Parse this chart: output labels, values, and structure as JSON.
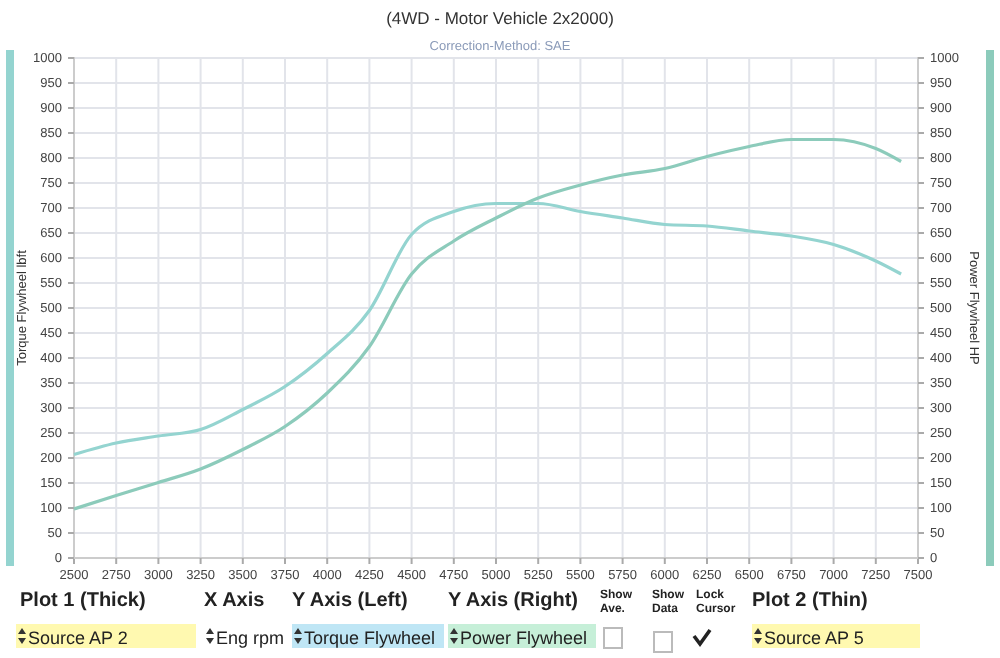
{
  "chart_data": {
    "type": "line",
    "title": "(4WD - Motor Vehicle 2x2000)",
    "subtitle": "Correction-Method: SAE",
    "ylabel": "Torque Flywheel lbft",
    "y2label": "Power Flywheel HP",
    "x": [
      2500,
      2750,
      3000,
      3250,
      3500,
      3750,
      4000,
      4250,
      4500,
      4750,
      5000,
      5250,
      5500,
      5750,
      6000,
      6250,
      6500,
      6750,
      7000,
      7250,
      7400
    ],
    "series": [
      {
        "color": "#94d4d0",
        "values": [
          207,
          230,
          244,
          257,
          297,
          343,
          409,
          495,
          647,
          693,
          709,
          709,
          693,
          680,
          667,
          664,
          654,
          644,
          627,
          594,
          568
        ]
      },
      {
        "color": "#8ccbbb",
        "axis": "y2",
        "values": [
          98,
          125,
          151,
          178,
          217,
          263,
          330,
          423,
          568,
          634,
          680,
          720,
          746,
          766,
          779,
          803,
          823,
          837,
          837,
          819,
          793
        ]
      }
    ],
    "xlim": [
      2500,
      7500
    ],
    "xticks": [
      2500,
      2750,
      3000,
      3250,
      3500,
      3750,
      4000,
      4250,
      4500,
      4750,
      5000,
      5250,
      5500,
      5750,
      6000,
      6250,
      6500,
      6750,
      7000,
      7250,
      7500
    ],
    "ylim": [
      0,
      1000
    ],
    "yticks": [
      0,
      50,
      100,
      150,
      200,
      250,
      300,
      350,
      400,
      450,
      500,
      550,
      600,
      650,
      700,
      750,
      800,
      850,
      900,
      950,
      1000
    ],
    "y2lim": [
      0,
      1000
    ],
    "y2ticks": [
      0,
      50,
      100,
      150,
      200,
      250,
      300,
      350,
      400,
      450,
      500,
      550,
      600,
      650,
      700,
      750,
      800,
      850,
      900,
      950,
      1000
    ],
    "grid": true,
    "annotations": [
      "Plot 1 (Thick)",
      "X Axis",
      "Y Axis (Left)",
      "Y Axis (Right)",
      "Show Ave.",
      "Show Data",
      "Lock Cursor",
      "Plot 2 (Thin)",
      "Source AP 2",
      "Eng rpm",
      "Torque Flywheel",
      "Power Flywheel",
      "Source AP 5"
    ]
  }
}
